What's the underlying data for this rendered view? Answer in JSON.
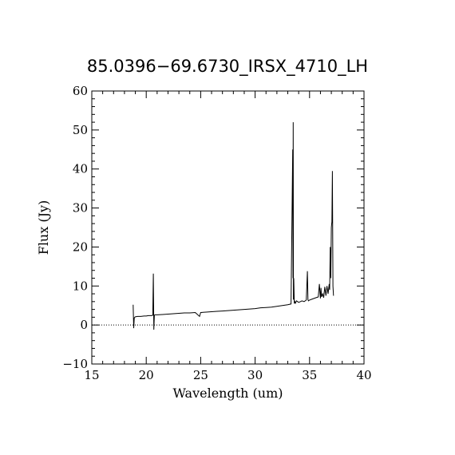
{
  "chart_data": {
    "type": "line",
    "title": "85.0396−69.6730_IRSX_4710_LH",
    "xlabel": "Wavelength (um)",
    "ylabel": "Flux (Jy)",
    "xlim": [
      15,
      40
    ],
    "ylim": [
      -10,
      60
    ],
    "x_ticks": [
      15,
      20,
      25,
      30,
      35,
      40
    ],
    "x_tick_labels": [
      "15",
      "20",
      "25",
      "30",
      "35",
      "40"
    ],
    "y_ticks": [
      -10,
      0,
      10,
      20,
      30,
      40,
      50,
      60
    ],
    "y_tick_labels": [
      "−10",
      "0",
      "10",
      "20",
      "30",
      "40",
      "50",
      "60"
    ],
    "grid": false,
    "zero_line": {
      "y": 0,
      "style": "dotted"
    },
    "series": [
      {
        "x": [
          18.8,
          18.85,
          18.9,
          18.95,
          19.0,
          19.2,
          19.5,
          19.8,
          20.0,
          20.2,
          20.4,
          20.5,
          20.6,
          20.65,
          20.7,
          20.75,
          20.8,
          21.0,
          21.5,
          22.0,
          22.5,
          23.0,
          23.5,
          24.0,
          24.5,
          24.9,
          25.0,
          25.5,
          26.0,
          26.5,
          27.0,
          27.5,
          28.0,
          28.5,
          29.0,
          29.5,
          30.0,
          30.5,
          31.0,
          31.5,
          32.0,
          32.5,
          33.0,
          33.3,
          33.45,
          33.48,
          33.5,
          33.52,
          33.55,
          33.6,
          33.65,
          33.7,
          33.8,
          34.0,
          34.3,
          34.5,
          34.7,
          34.8,
          34.85,
          34.9,
          35.0,
          35.2,
          35.4,
          35.6,
          35.8,
          35.9,
          36.0,
          36.05,
          36.1,
          36.2,
          36.3,
          36.4,
          36.5,
          36.6,
          36.7,
          36.8,
          36.85,
          36.9,
          36.95,
          37.0,
          37.05,
          37.1,
          37.15,
          37.2
        ],
        "y": [
          5.2,
          -0.8,
          1.8,
          2.0,
          2.1,
          2.2,
          2.2,
          2.3,
          2.3,
          2.4,
          2.4,
          2.4,
          2.5,
          13.2,
          -1.2,
          2.5,
          2.6,
          2.6,
          2.7,
          2.8,
          2.9,
          3.0,
          3.1,
          3.1,
          3.2,
          2.2,
          3.2,
          3.3,
          3.4,
          3.5,
          3.6,
          3.7,
          3.8,
          3.9,
          4.0,
          4.1,
          4.2,
          4.4,
          4.5,
          4.6,
          4.8,
          5.0,
          5.2,
          5.4,
          45.0,
          12.0,
          52.0,
          6.5,
          12.0,
          5.5,
          6.0,
          5.6,
          6.2,
          5.8,
          6.2,
          6.0,
          6.4,
          13.8,
          6.5,
          6.2,
          6.4,
          6.6,
          6.8,
          7.0,
          7.2,
          10.5,
          6.8,
          9.5,
          7.2,
          8.0,
          7.0,
          9.8,
          7.5,
          10.0,
          8.0,
          10.5,
          9.0,
          20.0,
          12.0,
          25.0,
          26.5,
          39.5,
          10.0,
          7.5
        ]
      }
    ]
  }
}
